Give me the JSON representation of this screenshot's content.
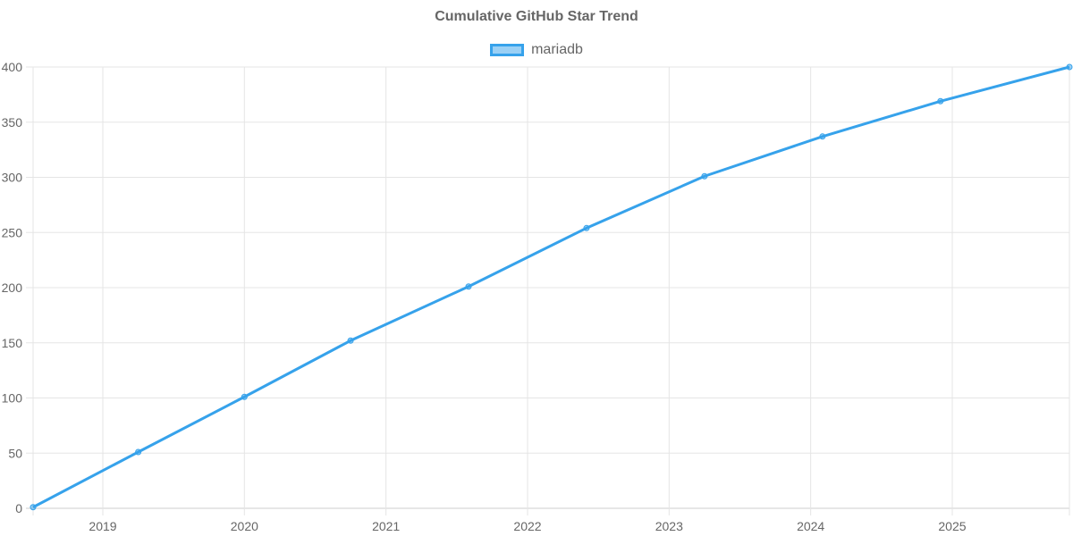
{
  "chart_data": {
    "type": "line",
    "title": "Cumulative GitHub Star Trend",
    "xlabel": "",
    "ylabel": "",
    "ylim": [
      0,
      400
    ],
    "yticks": [
      0,
      50,
      100,
      150,
      200,
      250,
      300,
      350,
      400
    ],
    "xticks": [
      "2019",
      "2020",
      "2021",
      "2022",
      "2023",
      "2024",
      "2025"
    ],
    "grid": true,
    "legend_position": "top",
    "series": [
      {
        "name": "mariadb",
        "color": "#36a2eb",
        "points": [
          {
            "x": "2018-07",
            "y": 1
          },
          {
            "x": "2019-04",
            "y": 51
          },
          {
            "x": "2020-01",
            "y": 101
          },
          {
            "x": "2020-10",
            "y": 152
          },
          {
            "x": "2021-08",
            "y": 201
          },
          {
            "x": "2022-06",
            "y": 254
          },
          {
            "x": "2023-04",
            "y": 301
          },
          {
            "x": "2024-02",
            "y": 337
          },
          {
            "x": "2024-12",
            "y": 369
          },
          {
            "x": "2025-11",
            "y": 400
          }
        ]
      }
    ]
  }
}
